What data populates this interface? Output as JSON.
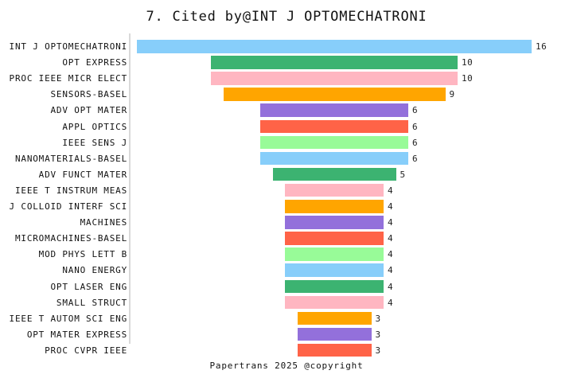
{
  "title": "7. Cited by@INT J OPTOMECHATRONI",
  "footer": "Papertrans 2025 @copyright",
  "colors": {
    "background": "#ffffff",
    "text": "#111111",
    "axis_line": "#d9d9d9"
  },
  "chart_data": {
    "type": "bar",
    "variant": "horizontal-centered-funnel",
    "title": "7. Cited by@INT J OPTOMECHATRONI",
    "xlabel": "",
    "ylabel": "",
    "grid": "off",
    "legend": "none",
    "value_labels": "right-of-bar",
    "value_range": [
      0,
      16
    ],
    "categories": [
      "INT J OPTOMECHATRONI",
      "OPT EXPRESS",
      "PROC IEEE MICR ELECT",
      "SENSORS-BASEL",
      "ADV OPT MATER",
      "APPL OPTICS",
      "IEEE SENS J",
      "NANOMATERIALS-BASEL",
      "ADV FUNCT MATER",
      "IEEE T INSTRUM MEAS",
      "J COLLOID INTERF SCI",
      "MACHINES",
      "MICROMACHINES-BASEL",
      "MOD PHYS LETT B",
      "NANO ENERGY",
      "OPT LASER ENG",
      "SMALL STRUCT",
      "IEEE T AUTOM SCI ENG",
      "OPT MATER EXPRESS",
      "PROC CVPR IEEE"
    ],
    "values": [
      16,
      10,
      10,
      9,
      6,
      6,
      6,
      6,
      5,
      4,
      4,
      4,
      4,
      4,
      4,
      4,
      4,
      3,
      3,
      3
    ],
    "color_cycle": [
      "#87CEFA",
      "#3CB371",
      "#FFB6C1",
      "#FFA500",
      "#9370DB",
      "#FF6347",
      "#98FB98"
    ]
  }
}
